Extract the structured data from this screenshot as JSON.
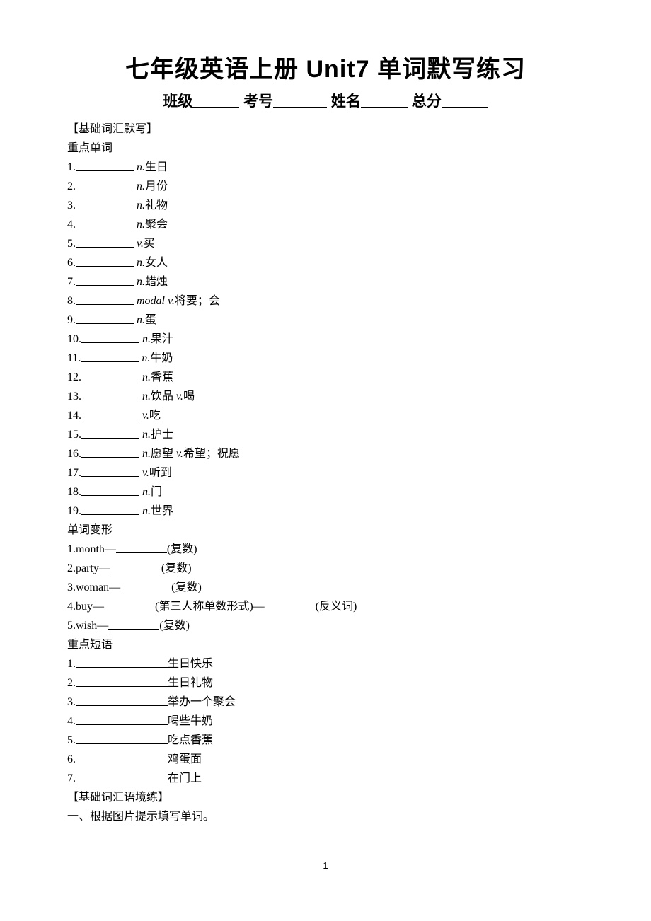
{
  "title": "七年级英语上册 Unit7 单词默写练习",
  "header": {
    "class": "班级",
    "examNo": "考号",
    "name": "姓名",
    "total": "总分"
  },
  "section1": "【基础词汇默写】",
  "sub_words": "重点单词",
  "words": [
    {
      "num": "1.",
      "pos": "n.",
      "def": "生日"
    },
    {
      "num": "2.",
      "pos": "n.",
      "def": "月份"
    },
    {
      "num": "3.",
      "pos": "n.",
      "def": "礼物"
    },
    {
      "num": "4.",
      "pos": "n.",
      "def": "聚会"
    },
    {
      "num": "5.",
      "pos": "v.",
      "def": "买"
    },
    {
      "num": "6.",
      "pos": "n.",
      "def": "女人"
    },
    {
      "num": "7.",
      "pos": "n.",
      "def": "蜡烛"
    },
    {
      "num": "8.",
      "pos": "modal v.",
      "def": "将要；会"
    },
    {
      "num": "9.",
      "pos": "n.",
      "def": "蛋"
    },
    {
      "num": "10.",
      "pos": "n.",
      "def": "果汁"
    },
    {
      "num": "11.",
      "pos": "n.",
      "def": "牛奶"
    },
    {
      "num": "12.",
      "pos": "n.",
      "def": "香蕉"
    },
    {
      "num": "13.",
      "pos": "n.",
      "def": "饮品",
      "pos2": "v.",
      "def2": "喝"
    },
    {
      "num": "14.",
      "pos": "v.",
      "def": "吃"
    },
    {
      "num": "15.",
      "pos": "n.",
      "def": "护士"
    },
    {
      "num": "16.",
      "pos": "n.",
      "def": "愿望",
      "pos2": "v.",
      "def2": "希望；祝愿"
    },
    {
      "num": "17.",
      "pos": "v.",
      "def": "听到"
    },
    {
      "num": "18.",
      "pos": "n.",
      "def": "门"
    },
    {
      "num": "19.",
      "pos": "n.",
      "def": "世界"
    }
  ],
  "sub_forms": "单词变形",
  "forms": [
    {
      "num": "1.",
      "base": "month—",
      "hint": "(复数)"
    },
    {
      "num": "2.",
      "base": "party—",
      "hint": "(复数)"
    },
    {
      "num": "3.",
      "base": "woman—",
      "hint": "(复数)"
    },
    {
      "num": "4.",
      "base": "buy—",
      "hint": "(第三人称单数形式)—",
      "hint2": "(反义词)"
    },
    {
      "num": "5.",
      "base": "wish—",
      "hint": "(复数)"
    }
  ],
  "sub_phrases": "重点短语",
  "phrases": [
    {
      "num": "1.",
      "def": "生日快乐"
    },
    {
      "num": "2.",
      "def": "生日礼物"
    },
    {
      "num": "3.",
      "def": "举办一个聚会"
    },
    {
      "num": "4.",
      "def": "喝些牛奶"
    },
    {
      "num": "5.",
      "def": "吃点香蕉"
    },
    {
      "num": "6.",
      "def": "鸡蛋面"
    },
    {
      "num": "7.",
      "def": "在门上"
    }
  ],
  "section2": "【基础词汇语境练】",
  "exercise1": "一、根据图片提示填写单词。",
  "page_num": "1"
}
